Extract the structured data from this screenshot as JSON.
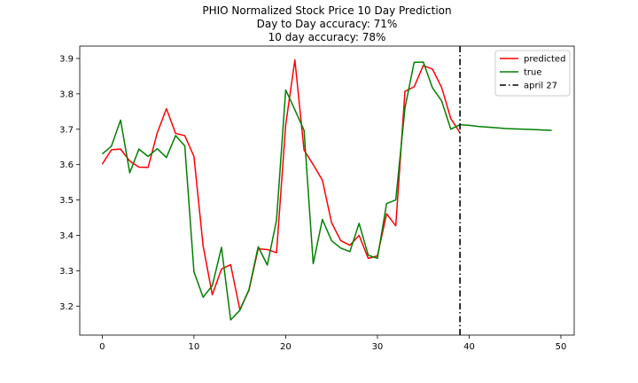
{
  "chart_data": {
    "type": "line",
    "title": [
      "PHIO Normalized Stock Price 10 Day Prediction",
      "Day to Day accuracy: 71%",
      "10 day accuracy: 78%"
    ],
    "xlabel": "",
    "ylabel": "",
    "xlim": [
      -2.45,
      51.45
    ],
    "ylim": [
      3.118,
      3.935
    ],
    "xticks": [
      0,
      10,
      20,
      30,
      40,
      50
    ],
    "yticks": [
      3.2,
      3.3,
      3.4,
      3.5,
      3.6,
      3.7,
      3.8,
      3.9
    ],
    "xtick_labels": [
      "0",
      "10",
      "20",
      "30",
      "40",
      "50"
    ],
    "ytick_labels": [
      "3.2",
      "3.3",
      "3.4",
      "3.5",
      "3.6",
      "3.7",
      "3.8",
      "3.9"
    ],
    "grid": false,
    "legend_position": "top-right",
    "series": [
      {
        "name": "predicted",
        "color": "#ff0000",
        "style": "solid",
        "x": [
          0,
          1,
          2,
          3,
          4,
          5,
          6,
          7,
          8,
          9,
          10,
          11,
          12,
          13,
          14,
          15,
          16,
          17,
          18,
          19,
          20,
          21,
          22,
          23,
          24,
          25,
          26,
          27,
          28,
          29,
          30,
          31,
          32,
          33,
          34,
          35,
          36,
          37,
          38,
          39
        ],
        "y": [
          3.601,
          3.642,
          3.644,
          3.61,
          3.593,
          3.592,
          3.69,
          3.758,
          3.688,
          3.682,
          3.623,
          3.37,
          3.232,
          3.305,
          3.317,
          3.19,
          3.245,
          3.362,
          3.36,
          3.351,
          3.712,
          3.896,
          3.641,
          3.6,
          3.556,
          3.436,
          3.385,
          3.372,
          3.4,
          3.335,
          3.342,
          3.461,
          3.427,
          3.807,
          3.82,
          3.88,
          3.87,
          3.818,
          3.73,
          3.69
        ]
      },
      {
        "name": "true",
        "color": "#008000",
        "style": "solid",
        "x": [
          0,
          1,
          2,
          3,
          4,
          5,
          6,
          7,
          8,
          9,
          10,
          11,
          12,
          13,
          14,
          15,
          16,
          17,
          18,
          19,
          20,
          21,
          22,
          23,
          24,
          25,
          26,
          27,
          28,
          29,
          30,
          31,
          32,
          33,
          34,
          35,
          36,
          37,
          38,
          39,
          40,
          41,
          42,
          43,
          44,
          45,
          46,
          47,
          48,
          49
        ],
        "y": [
          3.63,
          3.652,
          3.726,
          3.577,
          3.644,
          3.623,
          3.645,
          3.62,
          3.682,
          3.653,
          3.297,
          3.225,
          3.258,
          3.366,
          3.161,
          3.188,
          3.247,
          3.368,
          3.316,
          3.443,
          3.811,
          3.755,
          3.697,
          3.32,
          3.445,
          3.385,
          3.364,
          3.354,
          3.434,
          3.344,
          3.335,
          3.49,
          3.5,
          3.76,
          3.889,
          3.89,
          3.817,
          3.78,
          3.7,
          3.713,
          3.711,
          3.708,
          3.706,
          3.704,
          3.702,
          3.701,
          3.7,
          3.699,
          3.698,
          3.697
        ]
      }
    ],
    "vlines": [
      {
        "name": "april 27",
        "x": 39,
        "color": "#000000",
        "style": "dashdot"
      }
    ]
  }
}
